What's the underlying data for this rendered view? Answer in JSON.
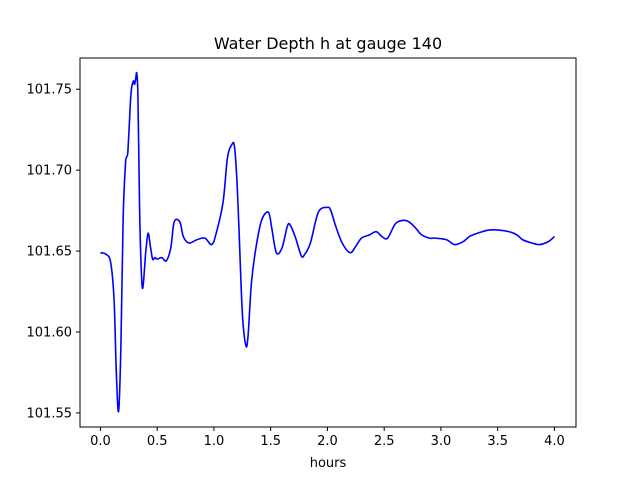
{
  "chart_data": {
    "type": "line",
    "title": "Water Depth h at gauge 140",
    "xlabel": "hours",
    "ylabel": "",
    "xlim": [
      -0.18,
      4.19
    ],
    "ylim": [
      101.5413,
      101.7693
    ],
    "grid": false,
    "legend": "none",
    "x_ticks": [
      0.0,
      0.5,
      1.0,
      1.5,
      2.0,
      2.5,
      3.0,
      3.5,
      4.0
    ],
    "x_tick_labels": [
      "0.0",
      "0.5",
      "1.0",
      "1.5",
      "2.0",
      "2.5",
      "3.0",
      "3.5",
      "4.0"
    ],
    "y_ticks": [
      101.55,
      101.6,
      101.65,
      101.7,
      101.75
    ],
    "y_tick_labels": [
      "101.55",
      "101.60",
      "101.65",
      "101.70",
      "101.75"
    ],
    "series": [
      {
        "color": "#0000ff",
        "x": [
          0.0,
          0.05,
          0.09,
          0.12,
          0.14,
          0.16,
          0.18,
          0.2,
          0.22,
          0.23,
          0.24,
          0.25,
          0.27,
          0.29,
          0.3,
          0.31,
          0.32,
          0.33,
          0.34,
          0.35,
          0.37,
          0.4,
          0.42,
          0.44,
          0.46,
          0.48,
          0.5,
          0.54,
          0.58,
          0.62,
          0.65,
          0.7,
          0.73,
          0.78,
          0.85,
          0.92,
          0.98,
          1.02,
          1.08,
          1.12,
          1.16,
          1.18,
          1.2,
          1.22,
          1.25,
          1.28,
          1.3,
          1.33,
          1.37,
          1.42,
          1.48,
          1.51,
          1.55,
          1.6,
          1.65,
          1.68,
          1.72,
          1.77,
          1.8,
          1.85,
          1.92,
          2.0,
          2.03,
          2.07,
          2.13,
          2.2,
          2.25,
          2.3,
          2.37,
          2.43,
          2.48,
          2.53,
          2.6,
          2.67,
          2.72,
          2.78,
          2.83,
          2.9,
          2.95,
          3.05,
          3.12,
          3.2,
          3.25,
          3.32,
          3.42,
          3.5,
          3.6,
          3.67,
          3.72,
          3.8,
          3.87,
          3.95,
          4.0
        ],
        "y": [
          101.649,
          101.648,
          101.643,
          101.62,
          101.575,
          101.551,
          101.59,
          101.67,
          101.703,
          101.708,
          101.71,
          101.722,
          101.748,
          101.755,
          101.753,
          101.756,
          101.76,
          101.747,
          101.7,
          101.66,
          101.627,
          101.65,
          101.661,
          101.653,
          101.645,
          101.646,
          101.645,
          101.646,
          101.644,
          101.652,
          101.668,
          101.668,
          101.659,
          101.655,
          101.657,
          101.658,
          101.654,
          101.661,
          101.68,
          101.708,
          101.716,
          101.715,
          101.697,
          101.665,
          101.612,
          101.592,
          101.597,
          101.63,
          101.652,
          101.669,
          101.674,
          101.664,
          101.649,
          101.652,
          101.666,
          101.665,
          101.658,
          101.647,
          101.648,
          101.655,
          101.674,
          101.677,
          101.675,
          101.666,
          101.655,
          101.649,
          101.653,
          101.658,
          101.66,
          101.662,
          101.659,
          101.658,
          101.667,
          101.669,
          101.668,
          101.664,
          101.66,
          101.658,
          101.658,
          101.657,
          101.654,
          101.656,
          101.659,
          101.661,
          101.663,
          101.663,
          101.662,
          101.66,
          101.657,
          101.655,
          101.654,
          101.656,
          101.659
        ]
      }
    ]
  }
}
